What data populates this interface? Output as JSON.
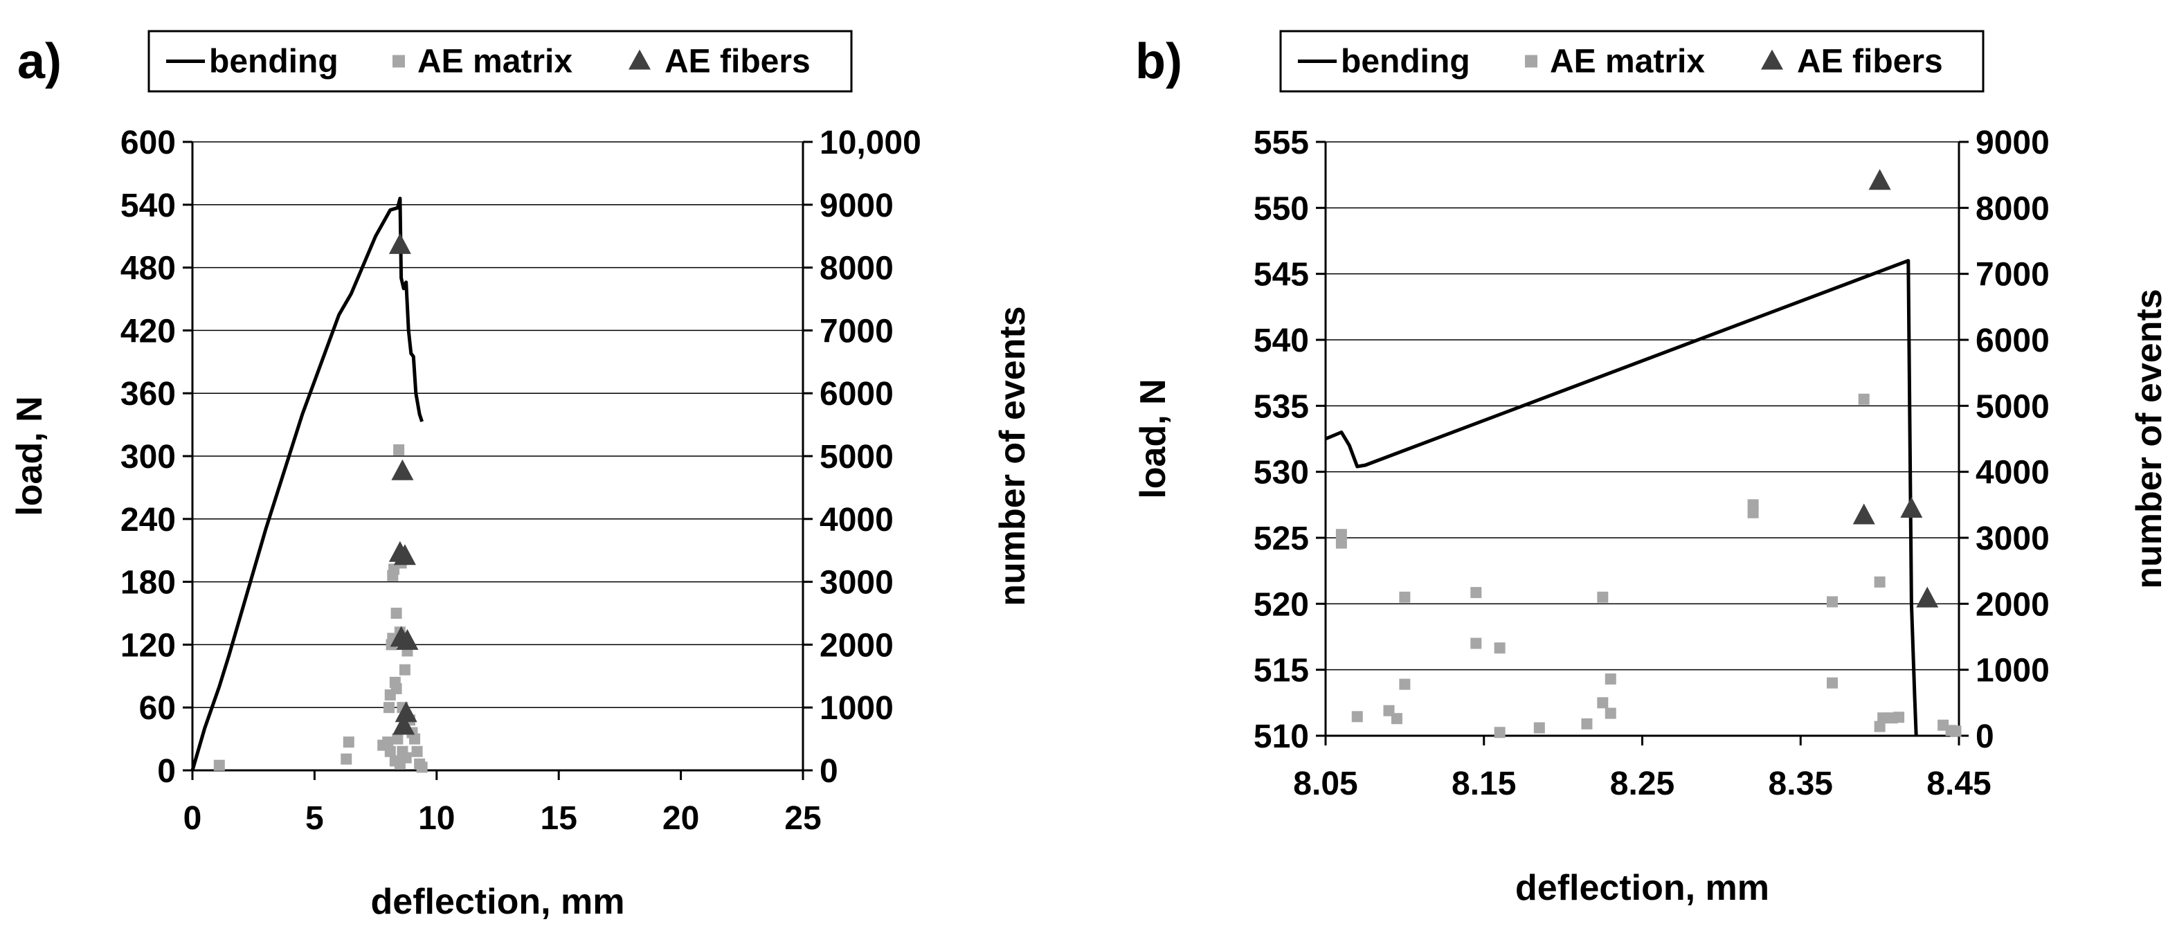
{
  "chart_data": [
    {
      "panel_label": "a)",
      "type": "line+scatter",
      "legend": {
        "placement": "top",
        "entries": [
          "bending",
          "AE matrix",
          "AE fibers"
        ]
      },
      "xlabel": "deflection, mm",
      "ylabel": "load, N",
      "y2label": "number of events",
      "xlim": [
        0,
        25
      ],
      "ylim": [
        0,
        600
      ],
      "y2lim": [
        0,
        10000
      ],
      "x_ticks": [
        "0",
        "5",
        "10",
        "15",
        "20",
        "25"
      ],
      "x_tick_values": [
        0,
        5,
        10,
        15,
        20,
        25
      ],
      "y_ticks": [
        "0",
        "60",
        "120",
        "180",
        "240",
        "300",
        "360",
        "420",
        "480",
        "540",
        "600"
      ],
      "y_tick_values": [
        0,
        60,
        120,
        180,
        240,
        300,
        360,
        420,
        480,
        540,
        600
      ],
      "y2_ticks": [
        "0",
        "1000",
        "2000",
        "3000",
        "4000",
        "5000",
        "6000",
        "7000",
        "8000",
        "9000",
        "10,000"
      ],
      "y2_tick_values": [
        0,
        1000,
        2000,
        3000,
        4000,
        5000,
        6000,
        7000,
        8000,
        9000,
        10000
      ],
      "grid": "horizontal",
      "series": [
        {
          "name": "bending",
          "axis": "left",
          "kind": "line",
          "points": [
            [
              0,
              0
            ],
            [
              0.5,
              40
            ],
            [
              1.1,
              80
            ],
            [
              1.5,
              110
            ],
            [
              3,
              230
            ],
            [
              4.5,
              340
            ],
            [
              6,
              435
            ],
            [
              6.5,
              455
            ],
            [
              7.5,
              510
            ],
            [
              8.1,
              535
            ],
            [
              8.4,
              537
            ],
            [
              8.5,
              546
            ],
            [
              8.55,
              470
            ],
            [
              8.65,
              460
            ],
            [
              8.75,
              466
            ],
            [
              8.85,
              420
            ],
            [
              8.95,
              398
            ],
            [
              9.05,
              395
            ],
            [
              9.15,
              360
            ],
            [
              9.3,
              340
            ],
            [
              9.4,
              333
            ]
          ]
        },
        {
          "name": "AE matrix",
          "axis": "right",
          "kind": "scatter-square",
          "points": [
            [
              1.1,
              80
            ],
            [
              6.3,
              180
            ],
            [
              6.4,
              450
            ],
            [
              7.8,
              400
            ],
            [
              8.0,
              450
            ],
            [
              8.05,
              1000
            ],
            [
              8.1,
              300
            ],
            [
              8.1,
              1200
            ],
            [
              8.15,
              2000
            ],
            [
              8.2,
              2100
            ],
            [
              8.2,
              3100
            ],
            [
              8.25,
              3200
            ],
            [
              8.3,
              1400
            ],
            [
              8.35,
              1300
            ],
            [
              8.35,
              2500
            ],
            [
              8.4,
              500
            ],
            [
              8.45,
              5100
            ],
            [
              8.5,
              2200
            ],
            [
              8.55,
              3300
            ],
            [
              8.6,
              1000
            ],
            [
              8.6,
              300
            ],
            [
              8.7,
              1600
            ],
            [
              8.75,
              200
            ],
            [
              8.8,
              1900
            ],
            [
              8.9,
              800
            ],
            [
              9.0,
              600
            ],
            [
              9.1,
              500
            ],
            [
              9.2,
              300
            ],
            [
              9.3,
              100
            ],
            [
              9.4,
              50
            ],
            [
              8.3,
              150
            ],
            [
              8.5,
              100
            ]
          ]
        },
        {
          "name": "AE fibers",
          "axis": "right",
          "kind": "scatter-triangle",
          "points": [
            [
              8.5,
              8350
            ],
            [
              8.6,
              4750
            ],
            [
              8.5,
              3450
            ],
            [
              8.7,
              3400
            ],
            [
              8.55,
              2100
            ],
            [
              8.8,
              2050
            ],
            [
              8.75,
              900
            ],
            [
              8.65,
              700
            ]
          ]
        }
      ]
    },
    {
      "panel_label": "b)",
      "type": "line+scatter",
      "legend": {
        "placement": "top",
        "entries": [
          "bending",
          "AE matrix",
          "AE fibers"
        ]
      },
      "xlabel": "deflection, mm",
      "ylabel": "load, N",
      "y2label": "number of events",
      "xlim": [
        8.05,
        8.45
      ],
      "ylim": [
        510,
        555
      ],
      "y2lim": [
        0,
        9000
      ],
      "x_ticks": [
        "8.05",
        "8.15",
        "8.25",
        "8.35",
        "8.45"
      ],
      "x_tick_values": [
        8.05,
        8.15,
        8.25,
        8.35,
        8.45
      ],
      "y_ticks": [
        "510",
        "515",
        "520",
        "525",
        "530",
        "535",
        "540",
        "545",
        "550",
        "555"
      ],
      "y_tick_values": [
        510,
        515,
        520,
        525,
        530,
        535,
        540,
        545,
        550,
        555
      ],
      "y2_ticks": [
        "0",
        "1000",
        "2000",
        "3000",
        "4000",
        "5000",
        "6000",
        "7000",
        "8000",
        "9000"
      ],
      "y2_tick_values": [
        0,
        1000,
        2000,
        3000,
        4000,
        5000,
        6000,
        7000,
        8000,
        9000
      ],
      "grid": "horizontal",
      "series": [
        {
          "name": "bending",
          "axis": "left",
          "kind": "line",
          "points": [
            [
              8.05,
              532.5
            ],
            [
              8.06,
              533
            ],
            [
              8.065,
              532
            ],
            [
              8.07,
              530.4
            ],
            [
              8.075,
              530.5
            ],
            [
              8.418,
              546
            ],
            [
              8.42,
              520
            ],
            [
              8.422,
              513
            ],
            [
              8.423,
              510
            ]
          ]
        },
        {
          "name": "AE matrix",
          "axis": "right",
          "kind": "scatter-square",
          "points": [
            [
              8.06,
              3050
            ],
            [
              8.06,
              2920
            ],
            [
              8.07,
              290
            ],
            [
              8.09,
              380
            ],
            [
              8.095,
              260
            ],
            [
              8.1,
              780
            ],
            [
              8.1,
              2100
            ],
            [
              8.145,
              2170
            ],
            [
              8.145,
              1400
            ],
            [
              8.16,
              1330
            ],
            [
              8.16,
              50
            ],
            [
              8.185,
              120
            ],
            [
              8.215,
              180
            ],
            [
              8.225,
              2100
            ],
            [
              8.225,
              500
            ],
            [
              8.23,
              340
            ],
            [
              8.23,
              860
            ],
            [
              8.32,
              3500
            ],
            [
              8.32,
              3380
            ],
            [
              8.37,
              2030
            ],
            [
              8.37,
              800
            ],
            [
              8.39,
              5100
            ],
            [
              8.4,
              2330
            ],
            [
              8.4,
              140
            ],
            [
              8.402,
              270
            ],
            [
              8.408,
              270
            ],
            [
              8.412,
              280
            ],
            [
              8.44,
              160
            ],
            [
              8.445,
              80
            ],
            [
              8.448,
              70
            ]
          ]
        },
        {
          "name": "AE fibers",
          "axis": "right",
          "kind": "scatter-triangle",
          "points": [
            [
              8.4,
              8400
            ],
            [
              8.39,
              3330
            ],
            [
              8.42,
              3430
            ],
            [
              8.43,
              2070
            ]
          ]
        }
      ]
    }
  ]
}
